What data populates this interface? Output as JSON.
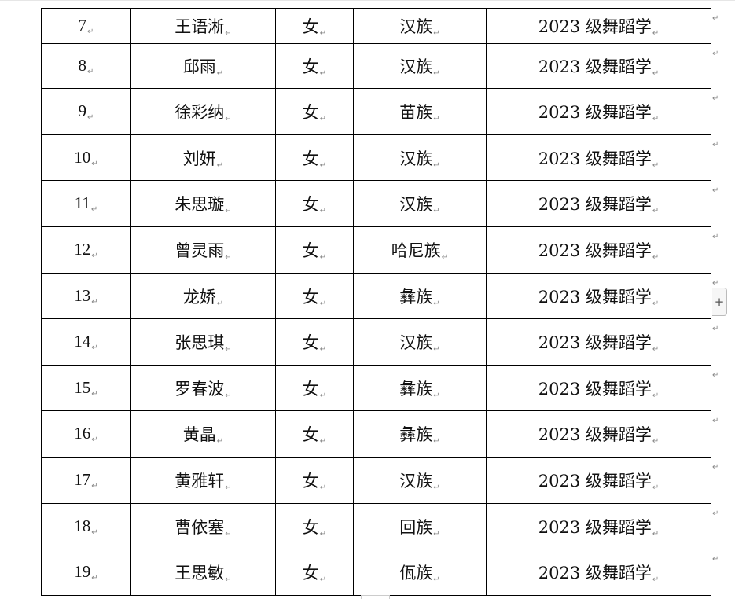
{
  "table": {
    "rows": [
      {
        "no": "7",
        "name": "王语淅",
        "gender": "女",
        "ethnicity": "汉族",
        "class": "2023 级舞蹈学"
      },
      {
        "no": "8",
        "name": "邱雨",
        "gender": "女",
        "ethnicity": "汉族",
        "class": "2023 级舞蹈学"
      },
      {
        "no": "9",
        "name": "徐彩纳",
        "gender": "女",
        "ethnicity": "苗族",
        "class": "2023 级舞蹈学"
      },
      {
        "no": "10",
        "name": "刘妍",
        "gender": "女",
        "ethnicity": "汉族",
        "class": "2023 级舞蹈学"
      },
      {
        "no": "11",
        "name": "朱思璇",
        "gender": "女",
        "ethnicity": "汉族",
        "class": "2023 级舞蹈学"
      },
      {
        "no": "12",
        "name": "曾灵雨",
        "gender": "女",
        "ethnicity": "哈尼族",
        "class": "2023 级舞蹈学"
      },
      {
        "no": "13",
        "name": "龙娇",
        "gender": "女",
        "ethnicity": "彝族",
        "class": "2023 级舞蹈学"
      },
      {
        "no": "14",
        "name": "张思琪",
        "gender": "女",
        "ethnicity": "汉族",
        "class": "2023 级舞蹈学"
      },
      {
        "no": "15",
        "name": "罗春波",
        "gender": "女",
        "ethnicity": "彝族",
        "class": "2023 级舞蹈学"
      },
      {
        "no": "16",
        "name": "黄晶",
        "gender": "女",
        "ethnicity": "彝族",
        "class": "2023 级舞蹈学"
      },
      {
        "no": "17",
        "name": "黄雅轩",
        "gender": "女",
        "ethnicity": "汉族",
        "class": "2023 级舞蹈学"
      },
      {
        "no": "18",
        "name": "曹依塞",
        "gender": "女",
        "ethnicity": "回族",
        "class": "2023 级舞蹈学"
      },
      {
        "no": "19",
        "name": "王思敏",
        "gender": "女",
        "ethnicity": "佤族",
        "class": "2023 级舞蹈学"
      }
    ]
  },
  "paragraph_mark": "↵",
  "add_row_button": {
    "label": "+"
  }
}
